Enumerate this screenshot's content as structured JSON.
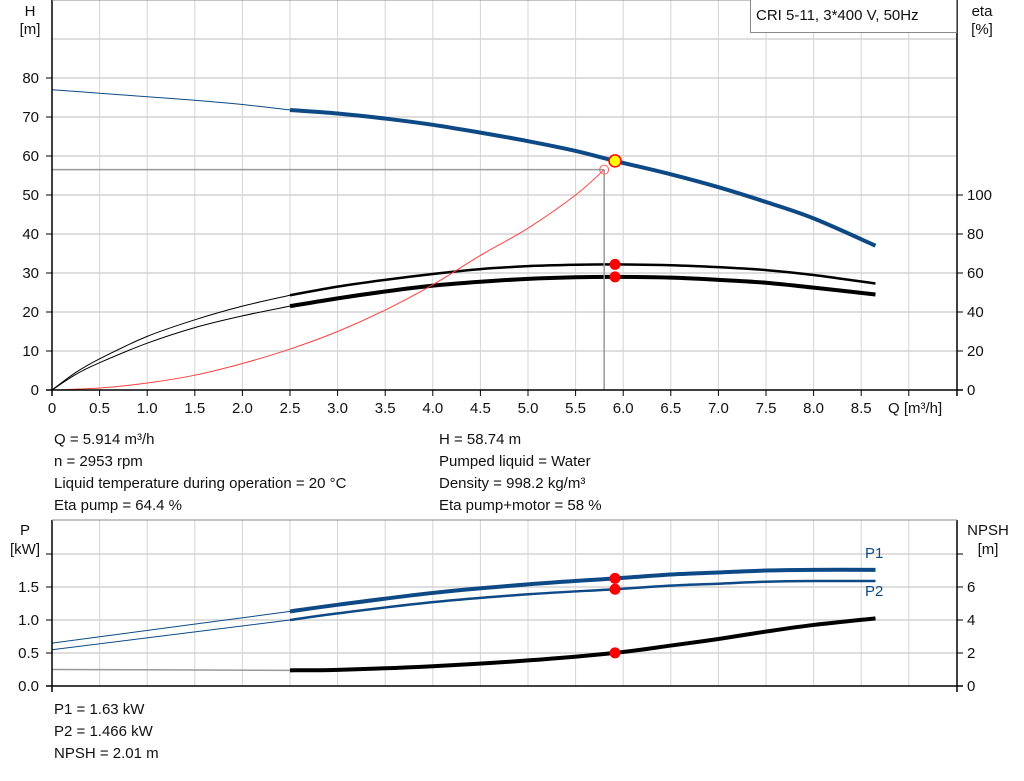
{
  "legend_title": "CRI 5-11, 3*400 V, 50Hz",
  "chart_data": [
    {
      "type": "line",
      "title": "",
      "xlabel": "Q [m³/h]",
      "ylabel_left": {
        "name": "H",
        "unit": "[m]"
      },
      "ylabel_right": {
        "name": "eta",
        "unit": "[%]"
      },
      "xlim": [
        0,
        9.5
      ],
      "ylim_left": [
        0,
        100
      ],
      "ylim_right": [
        0,
        200
      ],
      "x_ticks": [
        "0",
        "0.5",
        "1.0",
        "1.5",
        "2.0",
        "2.5",
        "3.0",
        "3.5",
        "4.0",
        "4.5",
        "5.0",
        "5.5",
        "6.0",
        "6.5",
        "7.0",
        "7.5",
        "8.0",
        "8.5"
      ],
      "y_ticks_left": [
        "0",
        "10",
        "20",
        "30",
        "40",
        "50",
        "60",
        "70",
        "80"
      ],
      "y_ticks_right": [
        "0",
        "20",
        "40",
        "60",
        "80",
        "100"
      ],
      "grid": true,
      "series": [
        {
          "key": "H",
          "axis": "left",
          "color": "#0d4a85",
          "x": [
            0,
            0.5,
            1,
            1.5,
            2,
            2.5,
            3,
            3.5,
            4,
            4.5,
            5,
            5.5,
            5.914,
            6.5,
            7,
            7.5,
            8,
            8.65
          ],
          "y": [
            77,
            76.1,
            75.2,
            74.3,
            73.2,
            71.8,
            70.9,
            69.6,
            68,
            66,
            63.8,
            61.3,
            58.74,
            55.3,
            52,
            48.2,
            44,
            37
          ]
        },
        {
          "key": "eta_pump",
          "axis": "right",
          "color": "#000000",
          "x": [
            0,
            0.25,
            0.5,
            1,
            1.5,
            2,
            2.5,
            3,
            3.5,
            4,
            4.5,
            5,
            5.5,
            5.914,
            6.5,
            7,
            7.5,
            8,
            8.65
          ],
          "y": [
            0,
            9,
            16,
            27.5,
            36,
            43,
            48.6,
            53,
            56.5,
            59.5,
            62,
            63.5,
            64.2,
            64.4,
            64,
            63,
            61.5,
            59,
            54.6
          ]
        },
        {
          "key": "eta_pump_motor",
          "axis": "right",
          "color": "#000000",
          "x": [
            0,
            0.25,
            0.5,
            1,
            1.5,
            2,
            2.5,
            3,
            3.5,
            4,
            4.5,
            5,
            5.5,
            5.914,
            6.5,
            7,
            7.5,
            8,
            8.65
          ],
          "y": [
            0,
            8,
            14,
            24,
            32,
            38,
            43,
            47,
            50.5,
            53.5,
            55.5,
            57,
            57.8,
            58,
            57.6,
            56.5,
            55,
            52.5,
            49
          ]
        },
        {
          "key": "system_curve",
          "axis": "left",
          "color": "#ff4040",
          "x": [
            0,
            0.5,
            1,
            1.5,
            2,
            2.5,
            3,
            3.5,
            4,
            4.5,
            5,
            5.5,
            5.8
          ],
          "y": [
            0,
            0.5,
            1.8,
            3.8,
            6.8,
            10.5,
            15,
            20.5,
            27,
            34.5,
            41.5,
            50,
            56.5
          ]
        }
      ],
      "operating_range": [
        2.5,
        8.65
      ],
      "duty_point": {
        "Q": 5.914,
        "H": 58.74,
        "eta_pump": 64.4,
        "eta_pump_motor": 58
      },
      "requested_point": {
        "Q": 5.8,
        "H": 56.5
      }
    },
    {
      "type": "line",
      "title": "",
      "ylabel_left": {
        "name": "P",
        "unit": "[kW]"
      },
      "ylabel_right": {
        "name": "NPSH",
        "unit": "[m]"
      },
      "xlim": [
        0,
        9.5
      ],
      "ylim_left": [
        0,
        2.5
      ],
      "ylim_right": [
        0,
        10
      ],
      "y_ticks_left": [
        "0.0",
        "0.5",
        "1.0",
        "1.5"
      ],
      "y_ticks_right": [
        "0",
        "2",
        "4",
        "6"
      ],
      "grid": true,
      "series": [
        {
          "key": "P1",
          "name": "P1",
          "axis": "left",
          "color": "#0d4a85",
          "x": [
            0,
            2.5,
            3,
            4,
            5,
            5.914,
            6.5,
            7,
            7.5,
            8,
            8.65
          ],
          "y": [
            0.65,
            1.13,
            1.23,
            1.41,
            1.54,
            1.63,
            1.69,
            1.72,
            1.75,
            1.76,
            1.76
          ]
        },
        {
          "key": "P2",
          "name": "P2",
          "axis": "left",
          "color": "#0d4a85",
          "x": [
            0,
            2.5,
            3,
            4,
            5,
            5.914,
            6.5,
            7,
            7.5,
            8,
            8.65
          ],
          "y": [
            0.55,
            1.0,
            1.1,
            1.27,
            1.39,
            1.466,
            1.52,
            1.55,
            1.58,
            1.59,
            1.59
          ]
        },
        {
          "key": "NPSH",
          "axis": "right",
          "color": "#000000",
          "x": [
            0,
            2.5,
            3,
            4,
            5,
            5.914,
            6.5,
            7,
            7.5,
            8,
            8.65
          ],
          "y": [
            1.0,
            0.95,
            0.98,
            1.2,
            1.55,
            2.01,
            2.45,
            2.85,
            3.3,
            3.7,
            4.1
          ]
        }
      ],
      "operating_range": [
        2.5,
        8.65
      ],
      "duty_point": {
        "Q": 5.914,
        "P1": 1.63,
        "P2": 1.466,
        "NPSH": 2.01
      }
    }
  ],
  "info": {
    "left": [
      "Q = 5.914 m³/h",
      "n = 2953 rpm",
      "Liquid temperature during operation = 20 °C",
      "Eta pump = 64.4 %"
    ],
    "right": [
      "H = 58.74 m",
      "Pumped liquid = Water",
      "Density = 998.2 kg/m³",
      "Eta pump+motor = 58 %"
    ],
    "bottom": [
      "P1 = 1.63 kW",
      "P2 = 1.466 kW",
      "NPSH = 2.01 m"
    ]
  }
}
